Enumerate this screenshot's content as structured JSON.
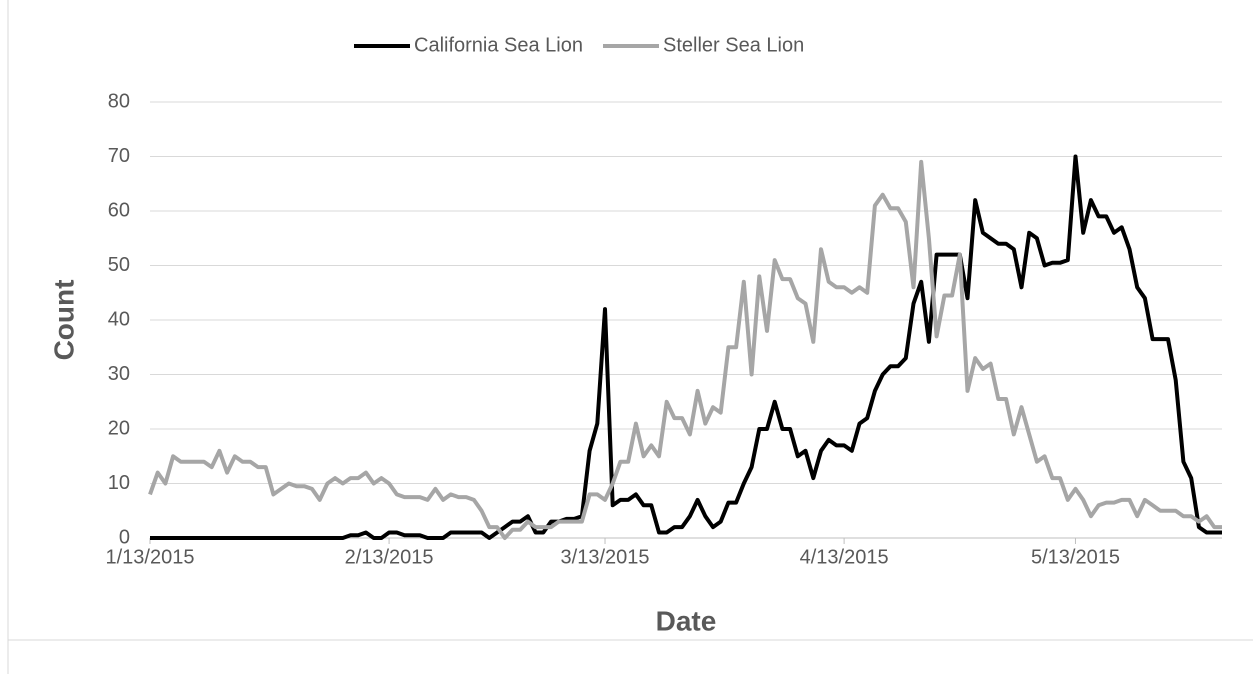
{
  "chart_data": {
    "type": "line",
    "x_label": "Date",
    "y_label": "Count",
    "x": [
      "2015-01-13",
      "2015-01-14",
      "2015-01-15",
      "2015-01-16",
      "2015-01-17",
      "2015-01-18",
      "2015-01-19",
      "2015-01-20",
      "2015-01-21",
      "2015-01-22",
      "2015-01-23",
      "2015-01-24",
      "2015-01-25",
      "2015-01-26",
      "2015-01-27",
      "2015-01-28",
      "2015-01-29",
      "2015-01-30",
      "2015-01-31",
      "2015-02-01",
      "2015-02-02",
      "2015-02-03",
      "2015-02-04",
      "2015-02-05",
      "2015-02-06",
      "2015-02-07",
      "2015-02-08",
      "2015-02-09",
      "2015-02-10",
      "2015-02-11",
      "2015-02-12",
      "2015-02-13",
      "2015-02-14",
      "2015-02-15",
      "2015-02-16",
      "2015-02-17",
      "2015-02-18",
      "2015-02-19",
      "2015-02-20",
      "2015-02-21",
      "2015-02-22",
      "2015-02-23",
      "2015-02-24",
      "2015-02-25",
      "2015-02-26",
      "2015-02-27",
      "2015-02-28",
      "2015-03-01",
      "2015-03-02",
      "2015-03-03",
      "2015-03-04",
      "2015-03-05",
      "2015-03-06",
      "2015-03-07",
      "2015-03-08",
      "2015-03-09",
      "2015-03-10",
      "2015-03-11",
      "2015-03-12",
      "2015-03-13",
      "2015-03-14",
      "2015-03-15",
      "2015-03-16",
      "2015-03-17",
      "2015-03-18",
      "2015-03-19",
      "2015-03-20",
      "2015-03-21",
      "2015-03-22",
      "2015-03-23",
      "2015-03-24",
      "2015-03-25",
      "2015-03-26",
      "2015-03-27",
      "2015-03-28",
      "2015-03-29",
      "2015-03-30",
      "2015-03-31",
      "2015-04-01",
      "2015-04-02",
      "2015-04-03",
      "2015-04-04",
      "2015-04-05",
      "2015-04-06",
      "2015-04-07",
      "2015-04-08",
      "2015-04-09",
      "2015-04-10",
      "2015-04-11",
      "2015-04-12",
      "2015-04-13",
      "2015-04-14",
      "2015-04-15",
      "2015-04-16",
      "2015-04-17",
      "2015-04-18",
      "2015-04-19",
      "2015-04-20",
      "2015-04-21",
      "2015-04-22",
      "2015-04-23",
      "2015-04-24",
      "2015-04-25",
      "2015-04-26",
      "2015-04-27",
      "2015-04-28",
      "2015-04-29",
      "2015-04-30",
      "2015-05-01",
      "2015-05-02",
      "2015-05-03",
      "2015-05-04",
      "2015-05-05",
      "2015-05-06",
      "2015-05-07",
      "2015-05-08",
      "2015-05-09",
      "2015-05-10",
      "2015-05-11",
      "2015-05-12",
      "2015-05-13",
      "2015-05-14",
      "2015-05-15",
      "2015-05-16",
      "2015-05-17",
      "2015-05-18",
      "2015-05-19",
      "2015-05-20",
      "2015-05-21",
      "2015-05-22",
      "2015-05-23",
      "2015-05-24",
      "2015-05-25",
      "2015-05-26",
      "2015-05-27",
      "2015-05-28",
      "2015-05-29",
      "2015-05-30",
      "2015-05-31",
      "2015-06-01"
    ],
    "series": [
      {
        "name": "California Sea Lion",
        "color": "#000000",
        "values": [
          0,
          0,
          0,
          0,
          0,
          0,
          0,
          0,
          0,
          0,
          0,
          0,
          0,
          0,
          0,
          0,
          0,
          0,
          0,
          0,
          0,
          0,
          0,
          0,
          0,
          0,
          0.5,
          0.5,
          1,
          0,
          0,
          1,
          1,
          0.5,
          0.5,
          0.5,
          0,
          0,
          0,
          1,
          1,
          1,
          1,
          1,
          0,
          1,
          2,
          3,
          3,
          4,
          1,
          1,
          3,
          3,
          3.5,
          3.5,
          4,
          16,
          21,
          42,
          6,
          7,
          7,
          8,
          6,
          6,
          1,
          1,
          2,
          2,
          4,
          7,
          4,
          2,
          3,
          6.5,
          6.5,
          10,
          13,
          20,
          20,
          25,
          20,
          20,
          15,
          16,
          11,
          16,
          18,
          17,
          17,
          16,
          21,
          22,
          27,
          30,
          31.5,
          31.5,
          33,
          43,
          47,
          36,
          52,
          52,
          52,
          52,
          44,
          62,
          56,
          55,
          54,
          54,
          53,
          46,
          56,
          55,
          50,
          50.5,
          50.5,
          51,
          70,
          56,
          62,
          59,
          59,
          56,
          57,
          53,
          46,
          44,
          36.5,
          36.5,
          36.5,
          29,
          14,
          11,
          2,
          1,
          1,
          1
        ]
      },
      {
        "name": "Steller Sea Lion",
        "color": "#a6a6a6",
        "values": [
          8,
          12,
          10,
          15,
          14,
          14,
          14,
          14,
          13,
          16,
          12,
          15,
          14,
          14,
          13,
          13,
          8,
          9,
          10,
          9.5,
          9.5,
          9,
          7,
          10,
          11,
          10,
          11,
          11,
          12,
          10,
          11,
          10,
          8,
          7.5,
          7.5,
          7.5,
          7,
          9,
          7,
          8,
          7.5,
          7.5,
          7,
          5,
          2,
          2,
          0,
          1.5,
          1.5,
          3,
          2,
          2,
          2,
          3,
          3,
          3,
          3,
          8,
          8,
          7,
          10,
          14,
          14,
          21,
          15,
          17,
          15,
          25,
          22,
          22,
          19,
          27,
          21,
          24,
          23,
          35,
          35,
          47,
          30,
          48,
          38,
          51,
          47.5,
          47.5,
          44,
          43,
          36,
          53,
          47,
          46,
          46,
          45,
          46,
          45,
          61,
          63,
          60.5,
          60.5,
          58,
          46,
          69,
          55,
          37,
          44.5,
          44.5,
          52,
          27,
          33,
          31,
          32,
          25.5,
          25.5,
          19,
          24,
          19,
          14,
          15,
          11,
          11,
          7,
          9,
          7,
          4,
          6,
          6.5,
          6.5,
          7,
          7,
          4,
          7,
          6,
          5,
          5,
          5,
          4,
          4,
          3,
          4,
          2,
          2
        ]
      }
    ],
    "xlim": [
      "2015-01-13",
      "2015-06-01"
    ],
    "xticks": [
      {
        "value": "2015-01-13",
        "label": "1/13/2015"
      },
      {
        "value": "2015-02-13",
        "label": "2/13/2015"
      },
      {
        "value": "2015-03-13",
        "label": "3/13/2015"
      },
      {
        "value": "2015-04-13",
        "label": "4/13/2015"
      },
      {
        "value": "2015-05-13",
        "label": "5/13/2015"
      }
    ],
    "ylim": [
      0,
      80
    ],
    "yticks": [
      0,
      10,
      20,
      30,
      40,
      50,
      60,
      70,
      80
    ],
    "grid": true,
    "legend": "top"
  }
}
